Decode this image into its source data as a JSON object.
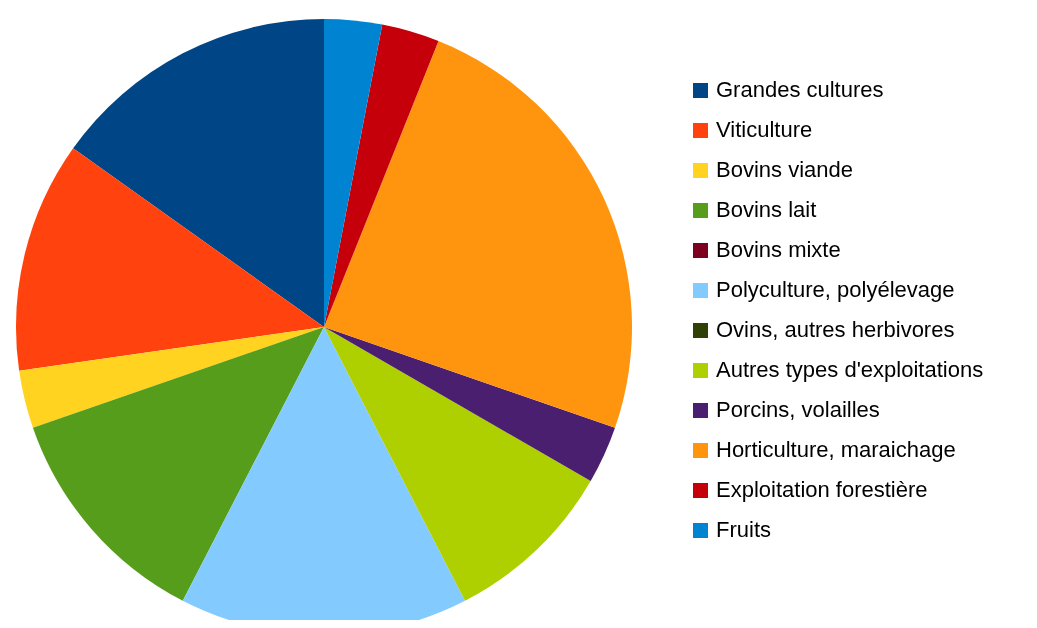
{
  "chart_data": {
    "type": "pie",
    "categories": [
      "Grandes cultures",
      "Viticulture",
      "Bovins viande",
      "Bovins lait",
      "Bovins mixte",
      "Polyculture, polyélevage",
      "Ovins, autres herbivores",
      "Autres types d'exploitations",
      "Porcins, volailles",
      "Horticulture, maraichage",
      "Exploitation forestière",
      "Fruits"
    ],
    "values": [
      15.15,
      12.12,
      3.03,
      12.12,
      0,
      15.15,
      0,
      9.09,
      3.03,
      24.25,
      3.03,
      3.03
    ],
    "colors": [
      "#004586",
      "#ff420e",
      "#ffd320",
      "#579d1c",
      "#7e0021",
      "#83caff",
      "#314004",
      "#aecf00",
      "#4b1f6f",
      "#ff950e",
      "#c5000b",
      "#0084d1"
    ],
    "legend": "right"
  }
}
